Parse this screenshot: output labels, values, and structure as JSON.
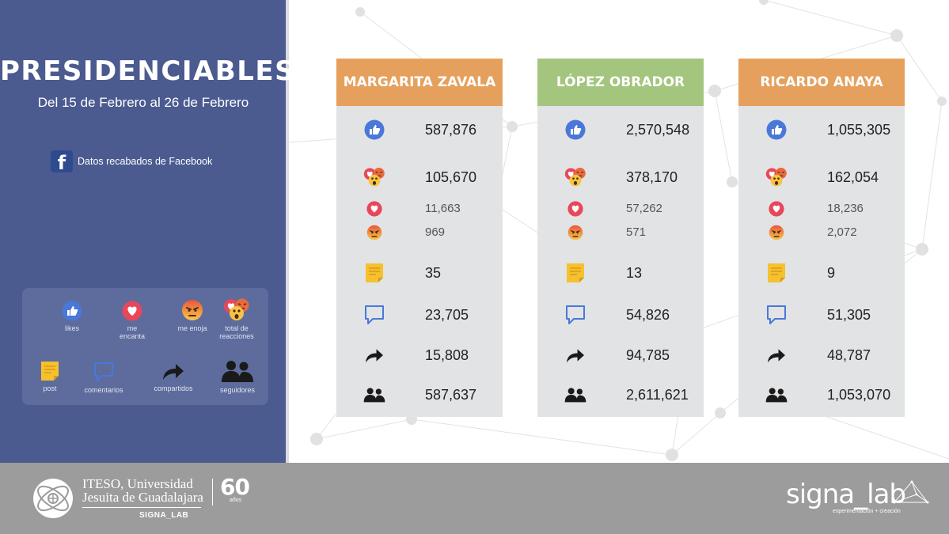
{
  "sidebar": {
    "title": "PRESIDENCIABLES",
    "date_range": "Del 15 de Febrero al 26 de Febrero",
    "source": "Datos recabados de Facebook",
    "legend": {
      "likes": "likes",
      "me_encanta": "me encanta",
      "me_enoja": "me enoja",
      "total_reacciones": "total de reacciones",
      "post": "post",
      "comentarios": "comentarios",
      "compartidos": "compartidos",
      "seguidores": "seguidores"
    }
  },
  "colors": {
    "sidebar": "#4b5b90",
    "zavala": "#e6a05e",
    "obrador": "#a3c57d",
    "anaya": "#e6a05e"
  },
  "candidates": [
    {
      "name": "MARGARITA ZAVALA",
      "likes": "587,876",
      "total_reactions": "105,670",
      "love": "11,663",
      "angry": "969",
      "posts": "35",
      "comments": "23,705",
      "shares": "15,808",
      "followers": "587,637"
    },
    {
      "name": "LÓPEZ OBRADOR",
      "likes": "2,570,548",
      "total_reactions": "378,170",
      "love": "57,262",
      "angry": "571",
      "posts": "13",
      "comments": "54,826",
      "shares": "94,785",
      "followers": "2,611,621"
    },
    {
      "name": "RICARDO ANAYA",
      "likes": "1,055,305",
      "total_reactions": "162,054",
      "love": "18,236",
      "angry": "2,072",
      "posts": "9",
      "comments": "51,305",
      "shares": "48,787",
      "followers": "1,053,070"
    }
  ],
  "footer": {
    "iteso_line1": "ITESO, Universidad",
    "iteso_line2": "Jesuita de Guadalajara",
    "iteso_sub": "SIGNA_LAB",
    "sixty": "60",
    "anos": "años",
    "signa": "signa_lab",
    "signa_tag": "experimentación + creación"
  }
}
